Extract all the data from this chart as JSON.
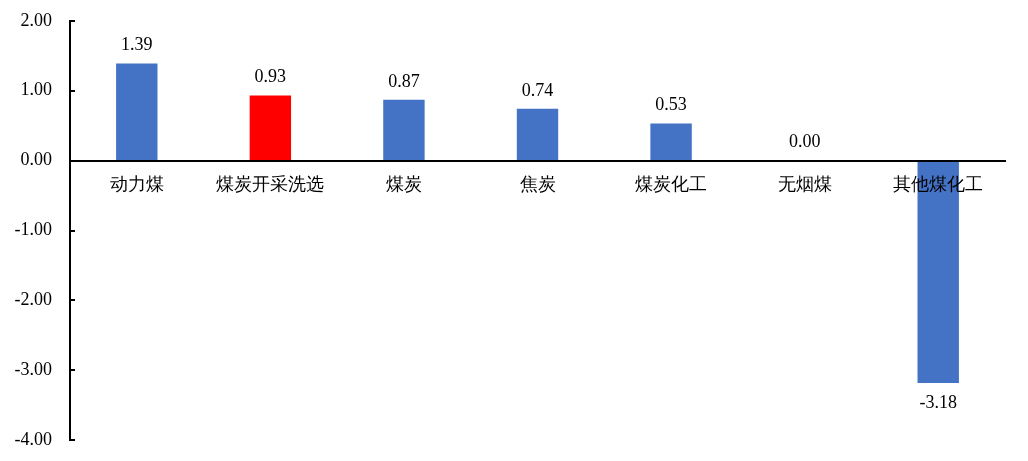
{
  "chart_data": {
    "type": "bar",
    "categories": [
      "动力煤",
      "煤炭开采洗选",
      "煤炭",
      "焦炭",
      "煤炭化工",
      "无烟煤",
      "其他煤化工"
    ],
    "values": [
      1.39,
      0.93,
      0.87,
      0.74,
      0.53,
      0.0,
      -3.18
    ],
    "colors": [
      "#4472c4",
      "#ff0000",
      "#4472c4",
      "#4472c4",
      "#4472c4",
      "#4472c4",
      "#4472c4"
    ],
    "value_labels": [
      "1.39",
      "0.93",
      "0.87",
      "0.74",
      "0.53",
      "0.00",
      "-3.18"
    ],
    "ylim": [
      -4,
      2
    ],
    "yticks": [
      {
        "value": 2,
        "label": "2.00"
      },
      {
        "value": 1,
        "label": "1.00"
      },
      {
        "value": 0,
        "label": "0.00"
      },
      {
        "value": -1,
        "label": "-1.00"
      },
      {
        "value": -2,
        "label": "-2.00"
      },
      {
        "value": -3,
        "label": "-3.00"
      },
      {
        "value": -4,
        "label": "-4.00"
      }
    ]
  }
}
